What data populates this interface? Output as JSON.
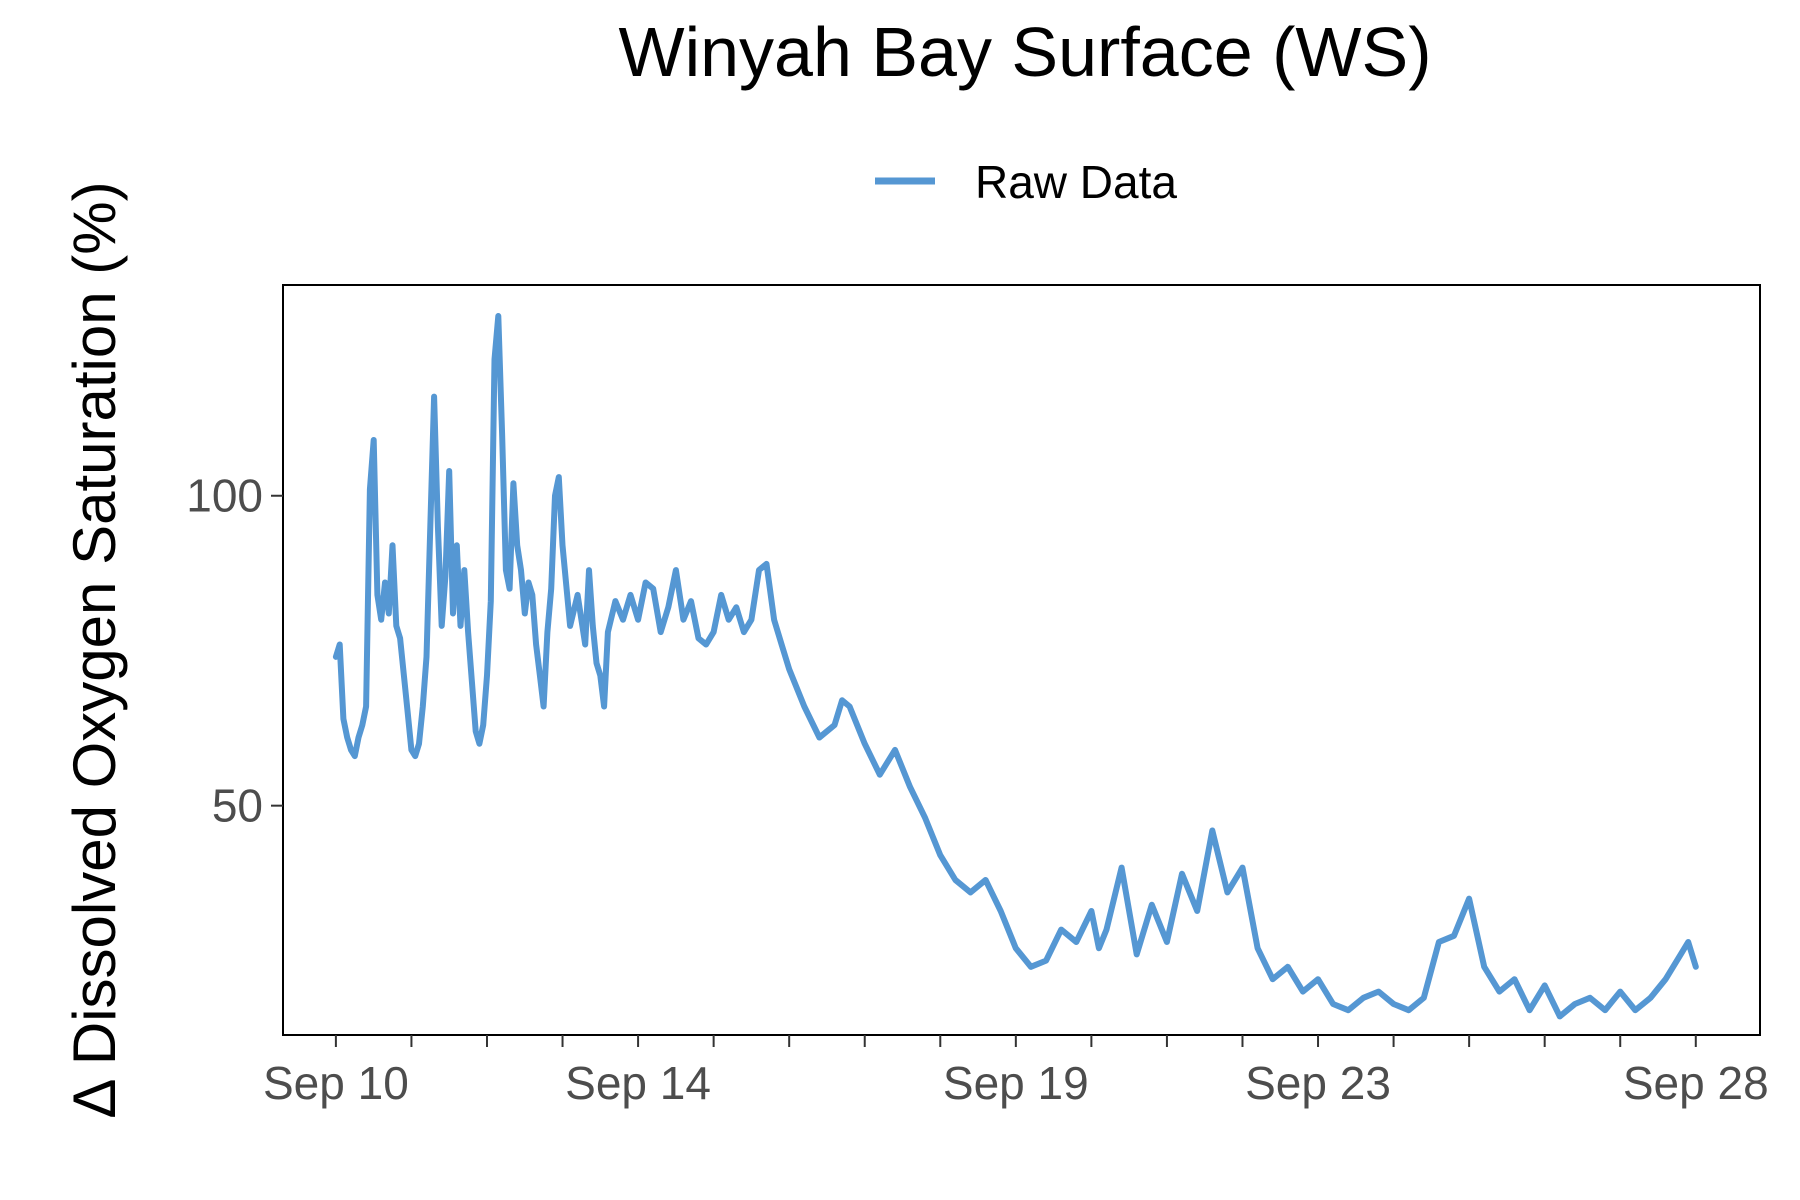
{
  "chart_data": {
    "type": "line",
    "title": "Winyah Bay Surface (WS)",
    "xlabel": "",
    "ylabel": "Δ Dissolved Oxygen Saturation (%)",
    "x_unit": "date (September)",
    "xlim": [
      "Sep 9",
      "Sep 28"
    ],
    "ylim": [
      13,
      134
    ],
    "x_ticks": [
      "Sep 10",
      "Sep 14",
      "Sep 19",
      "Sep 23",
      "Sep 28"
    ],
    "x_tick_days": [
      10,
      14,
      19,
      23,
      28
    ],
    "x_minor_tick_days": [
      11,
      12,
      13,
      15,
      16,
      17,
      18,
      20,
      21,
      22,
      24,
      25,
      26,
      27
    ],
    "y_ticks": [
      50,
      100
    ],
    "grid": false,
    "legend_position": "top",
    "colors": {
      "line": "#5597d3"
    },
    "series": [
      {
        "name": "Raw Data",
        "x": [
          10.0,
          10.05,
          10.1,
          10.15,
          10.2,
          10.25,
          10.3,
          10.35,
          10.4,
          10.45,
          10.5,
          10.55,
          10.6,
          10.65,
          10.7,
          10.75,
          10.8,
          10.85,
          10.9,
          10.95,
          11.0,
          11.05,
          11.1,
          11.15,
          11.2,
          11.25,
          11.3,
          11.35,
          11.4,
          11.45,
          11.5,
          11.55,
          11.6,
          11.65,
          11.7,
          11.75,
          11.8,
          11.85,
          11.9,
          11.95,
          12.0,
          12.05,
          12.1,
          12.15,
          12.2,
          12.25,
          12.3,
          12.35,
          12.4,
          12.45,
          12.5,
          12.55,
          12.6,
          12.65,
          12.7,
          12.75,
          12.8,
          12.85,
          12.9,
          12.95,
          13.0,
          13.1,
          13.2,
          13.3,
          13.35,
          13.4,
          13.45,
          13.5,
          13.55,
          13.6,
          13.7,
          13.8,
          13.9,
          14.0,
          14.1,
          14.2,
          14.3,
          14.4,
          14.5,
          14.6,
          14.7,
          14.8,
          14.9,
          15.0,
          15.1,
          15.2,
          15.3,
          15.4,
          15.5,
          15.6,
          15.7,
          15.8,
          15.9,
          16.0,
          16.2,
          16.4,
          16.6,
          16.7,
          16.8,
          17.0,
          17.2,
          17.4,
          17.6,
          17.8,
          18.0,
          18.2,
          18.4,
          18.6,
          18.8,
          19.0,
          19.2,
          19.4,
          19.6,
          19.8,
          20.0,
          20.1,
          20.2,
          20.4,
          20.6,
          20.8,
          21.0,
          21.2,
          21.4,
          21.6,
          21.8,
          22.0,
          22.2,
          22.4,
          22.6,
          22.8,
          23.0,
          23.2,
          23.4,
          23.6,
          23.8,
          24.0,
          24.2,
          24.4,
          24.6,
          24.8,
          25.0,
          25.2,
          25.4,
          25.6,
          25.8,
          26.0,
          26.2,
          26.4,
          26.6,
          26.8,
          27.0,
          27.2,
          27.4,
          27.6,
          27.8,
          27.9,
          28.0
        ],
        "values": [
          74,
          76,
          64,
          61,
          59,
          58,
          61,
          63,
          66,
          101,
          109,
          84,
          80,
          86,
          81,
          92,
          79,
          77,
          71,
          65,
          59,
          58,
          60,
          66,
          74,
          95,
          116,
          95,
          79,
          87,
          104,
          81,
          92,
          79,
          88,
          78,
          70,
          62,
          60,
          63,
          71,
          83,
          122,
          129,
          110,
          88,
          85,
          102,
          92,
          88,
          81,
          86,
          84,
          76,
          71,
          66,
          78,
          85,
          100,
          103,
          92,
          79,
          84,
          76,
          88,
          79,
          73,
          71,
          66,
          78,
          83,
          80,
          84,
          80,
          86,
          85,
          78,
          82,
          88,
          80,
          83,
          77,
          76,
          78,
          84,
          80,
          82,
          78,
          80,
          88,
          89,
          80,
          76,
          72,
          66,
          61,
          63,
          67,
          66,
          60,
          55,
          59,
          53,
          48,
          42,
          38,
          36,
          38,
          33,
          27,
          24,
          25,
          30,
          28,
          33,
          27,
          30,
          40,
          26,
          34,
          28,
          39,
          33,
          46,
          36,
          40,
          27,
          22,
          24,
          20,
          22,
          18,
          17,
          19,
          20,
          18,
          17,
          19,
          28,
          29,
          35,
          24,
          20,
          22,
          17,
          21,
          16,
          18,
          19,
          17,
          20,
          17,
          19,
          22,
          26,
          28,
          24
        ]
      }
    ]
  }
}
